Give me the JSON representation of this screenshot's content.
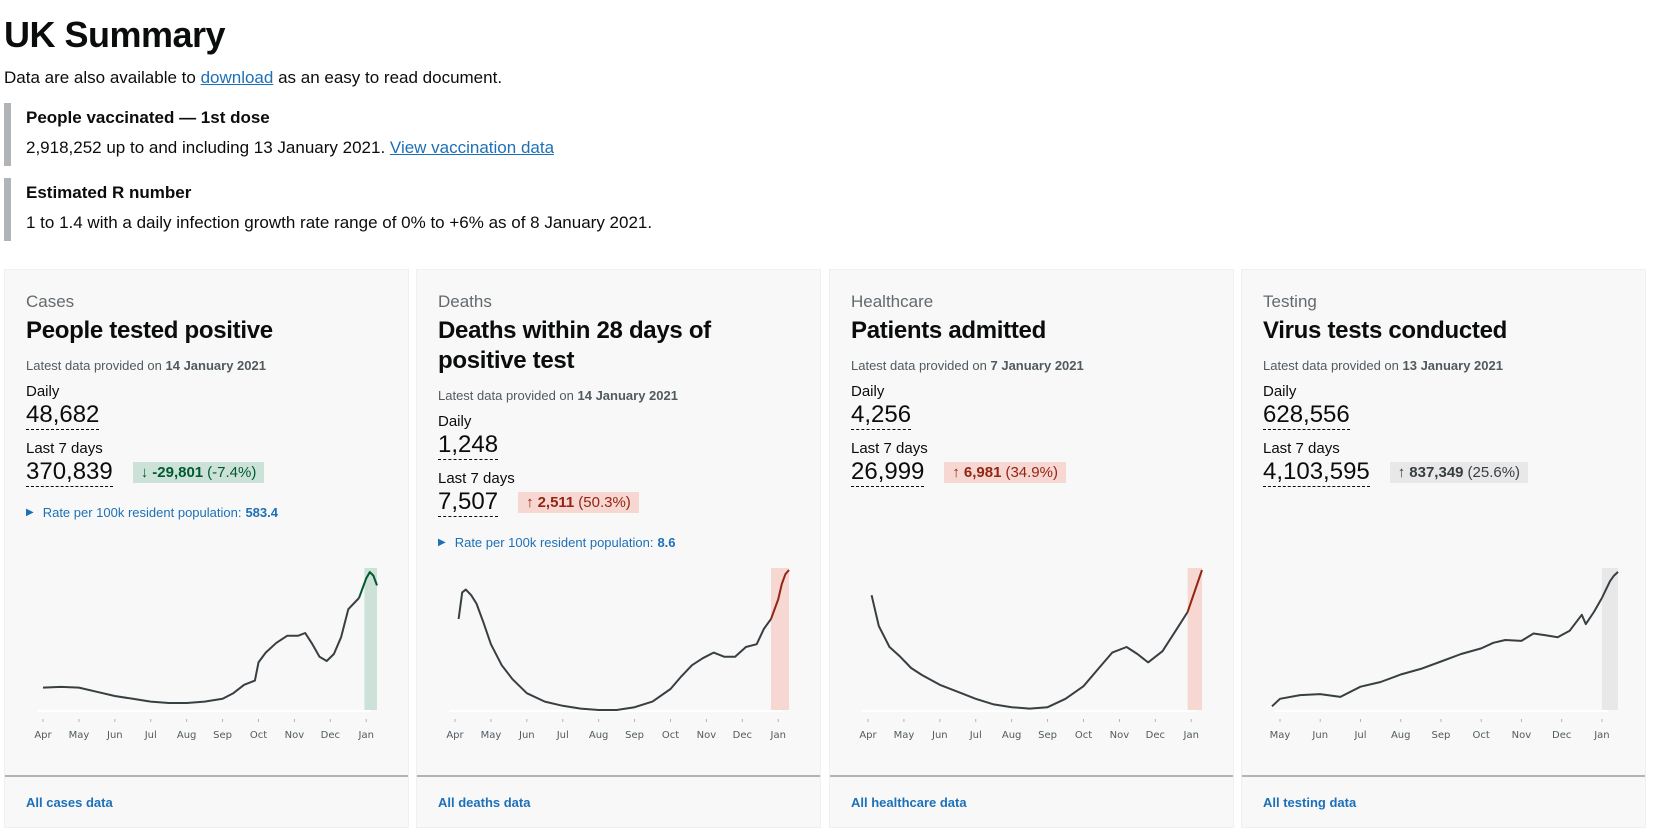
{
  "page": {
    "title": "UK Summary",
    "intro_before": "Data are also available to ",
    "intro_link": "download",
    "intro_after": " as an easy to read document."
  },
  "vaccinated": {
    "title": "People vaccinated — 1st dose",
    "body": "2,918,252 up to and including 13 January 2021. ",
    "link": "View vaccination data"
  },
  "r_number": {
    "title": "Estimated R number",
    "body": "1 to 1.4 with a daily infection growth rate range of 0% to +6% as of 8 January 2021."
  },
  "cards": [
    {
      "category": "Cases",
      "title": "People tested positive",
      "updated_prefix": "Latest data provided on ",
      "updated_date": "14 January 2021",
      "daily_label": "Daily",
      "daily_value": "48,682",
      "week_label": "Last 7 days",
      "week_value": "370,839",
      "change_arrow": "↓",
      "change_value": "-29,801",
      "change_pct": "(-7.4%)",
      "change_status": "good",
      "rate_label": "Rate per 100k resident population:",
      "rate_value": "583.4",
      "link": "All cases data"
    },
    {
      "category": "Deaths",
      "title": "Deaths within 28 days of positive test",
      "updated_prefix": "Latest data provided on ",
      "updated_date": "14 January 2021",
      "daily_label": "Daily",
      "daily_value": "1,248",
      "week_label": "Last 7 days",
      "week_value": "7,507",
      "change_arrow": "↑",
      "change_value": "2,511",
      "change_pct": "(50.3%)",
      "change_status": "bad",
      "rate_label": "Rate per 100k resident population:",
      "rate_value": "8.6",
      "link": "All deaths data"
    },
    {
      "category": "Healthcare",
      "title": "Patients admitted",
      "updated_prefix": "Latest data provided on ",
      "updated_date": "7 January 2021",
      "daily_label": "Daily",
      "daily_value": "4,256",
      "week_label": "Last 7 days",
      "week_value": "26,999",
      "change_arrow": "↑",
      "change_value": "6,981",
      "change_pct": "(34.9%)",
      "change_status": "bad",
      "link": "All healthcare data"
    },
    {
      "category": "Testing",
      "title": "Virus tests conducted",
      "updated_prefix": "Latest data provided on ",
      "updated_date": "13 January 2021",
      "daily_label": "Daily",
      "daily_value": "628,556",
      "week_label": "Last 7 days",
      "week_value": "4,103,595",
      "change_arrow": "↑",
      "change_value": "837,349",
      "change_pct": "(25.6%)",
      "change_status": "neutral",
      "link": "All testing data"
    }
  ],
  "colors": {
    "good_line": "#005a30",
    "good_fill": "#cce2d8",
    "bad_line": "#942514",
    "bad_fill": "#f6d7d2",
    "neutral_fill": "#e8e8e8",
    "line": "#383f43",
    "link": "#1d70b8"
  },
  "chart_data": [
    {
      "type": "line",
      "title": "People tested positive",
      "x_ticks": [
        "Apr",
        "May",
        "Jun",
        "Jul",
        "Aug",
        "Sep",
        "Oct",
        "Nov",
        "Dec",
        "Jan"
      ],
      "x": [
        0,
        0.5,
        1,
        1.5,
        2,
        2.5,
        3,
        3.5,
        4,
        4.5,
        5,
        5.3,
        5.6,
        5.9,
        6.0,
        6.2,
        6.5,
        6.8,
        7.1,
        7.3,
        7.5,
        7.7,
        7.9,
        8.1,
        8.3,
        8.5,
        8.8,
        9.0,
        9.1,
        9.2,
        9.3
      ],
      "values": [
        0.16,
        0.165,
        0.16,
        0.13,
        0.1,
        0.08,
        0.06,
        0.05,
        0.05,
        0.06,
        0.08,
        0.12,
        0.18,
        0.21,
        0.34,
        0.41,
        0.48,
        0.53,
        0.53,
        0.55,
        0.47,
        0.38,
        0.35,
        0.4,
        0.52,
        0.72,
        0.8,
        0.94,
        0.985,
        0.96,
        0.89
      ],
      "highlight_from": 8.95,
      "highlight_status": "good",
      "ylim": [
        0,
        1
      ]
    },
    {
      "type": "line",
      "title": "Deaths within 28 days of positive test",
      "x_ticks": [
        "Apr",
        "May",
        "Jun",
        "Jul",
        "Aug",
        "Sep",
        "Oct",
        "Nov",
        "Dec",
        "Jan"
      ],
      "x": [
        0.1,
        0.2,
        0.3,
        0.45,
        0.6,
        0.8,
        1.0,
        1.3,
        1.6,
        2.0,
        2.5,
        3.0,
        3.5,
        4.0,
        4.5,
        5.0,
        5.5,
        6.0,
        6.3,
        6.6,
        6.9,
        7.2,
        7.5,
        7.8,
        8.1,
        8.4,
        8.6,
        8.8,
        9.0,
        9.1,
        9.2,
        9.3
      ],
      "values": [
        0.65,
        0.84,
        0.86,
        0.82,
        0.76,
        0.62,
        0.47,
        0.32,
        0.22,
        0.12,
        0.06,
        0.03,
        0.01,
        0.0,
        0.0,
        0.02,
        0.06,
        0.15,
        0.24,
        0.32,
        0.37,
        0.41,
        0.38,
        0.38,
        0.45,
        0.47,
        0.58,
        0.65,
        0.79,
        0.9,
        0.97,
        1.0
      ],
      "highlight_from": 8.8,
      "highlight_status": "bad",
      "ylim": [
        0,
        1
      ]
    },
    {
      "type": "line",
      "title": "Patients admitted",
      "x_ticks": [
        "Apr",
        "May",
        "Jun",
        "Jul",
        "Aug",
        "Sep",
        "Oct",
        "Nov",
        "Dec",
        "Jan"
      ],
      "x": [
        0.1,
        0.3,
        0.6,
        0.9,
        1.2,
        1.5,
        2.0,
        2.5,
        3.0,
        3.5,
        4.0,
        4.5,
        5.0,
        5.5,
        6.0,
        6.4,
        6.8,
        7.2,
        7.5,
        7.8,
        8.2,
        8.6,
        8.9,
        9.1,
        9.3
      ],
      "values": [
        0.82,
        0.6,
        0.45,
        0.38,
        0.3,
        0.25,
        0.18,
        0.13,
        0.08,
        0.04,
        0.02,
        0.01,
        0.02,
        0.08,
        0.17,
        0.29,
        0.41,
        0.45,
        0.4,
        0.34,
        0.42,
        0.58,
        0.7,
        0.85,
        1.0
      ],
      "highlight_from": 8.9,
      "highlight_status": "bad",
      "ylim": [
        0,
        1
      ]
    },
    {
      "type": "line",
      "title": "Virus tests conducted",
      "x_ticks": [
        "May",
        "Jun",
        "Jul",
        "Aug",
        "Sep",
        "Oct",
        "Nov",
        "Dec",
        "Jan"
      ],
      "x": [
        -0.2,
        0.0,
        0.5,
        1.0,
        1.5,
        2.0,
        2.5,
        3.0,
        3.5,
        4.0,
        4.5,
        5.0,
        5.3,
        5.6,
        6.0,
        6.3,
        6.6,
        6.9,
        7.2,
        7.5,
        7.6,
        7.8,
        8.0,
        8.2,
        8.3,
        8.4
      ],
      "values": [
        0.04,
        0.12,
        0.16,
        0.17,
        0.14,
        0.25,
        0.3,
        0.38,
        0.44,
        0.52,
        0.6,
        0.66,
        0.72,
        0.75,
        0.74,
        0.82,
        0.8,
        0.78,
        0.85,
        1.02,
        0.92,
        1.05,
        1.2,
        1.38,
        1.44,
        1.48
      ],
      "highlight_from": 8.0,
      "highlight_status": "neutral",
      "ylim": [
        0,
        1.5
      ]
    }
  ]
}
